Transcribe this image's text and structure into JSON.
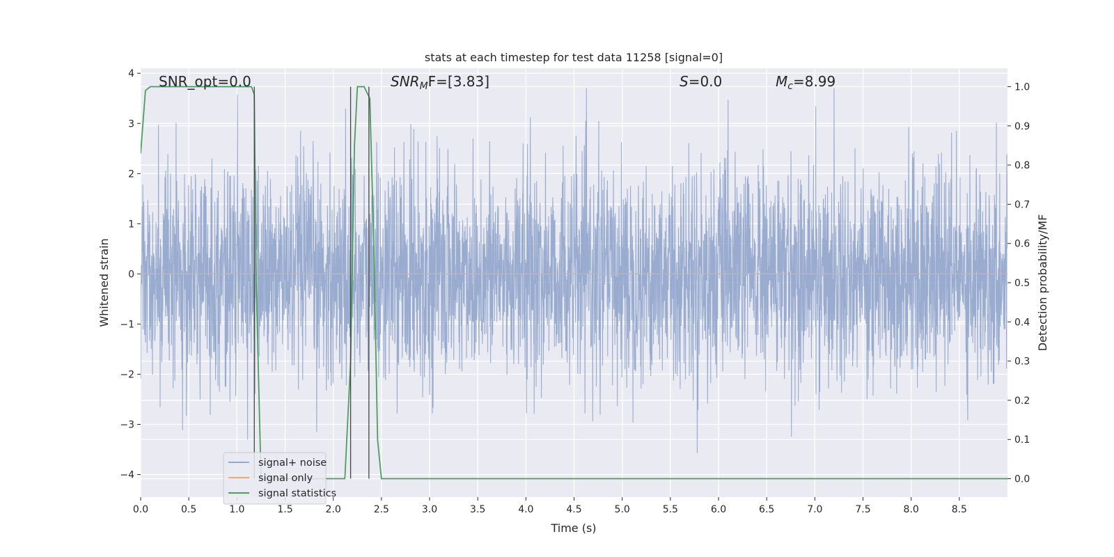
{
  "chart_data": {
    "type": "line",
    "title": "stats at each timestep for test data 11258 [signal=0]",
    "xlabel": "Time (s)",
    "ylabel_left": "Whitened strain",
    "ylabel_right": "Detection probability/MF",
    "xlim": [
      0.0,
      9.0
    ],
    "ylim_left": [
      -4.45,
      4.1
    ],
    "ylim_right": [
      -0.047,
      1.047
    ],
    "xticks": [
      0.0,
      0.5,
      1.0,
      1.5,
      2.0,
      2.5,
      3.0,
      3.5,
      4.0,
      4.5,
      5.0,
      5.5,
      6.0,
      6.5,
      7.0,
      7.5,
      8.0,
      8.5
    ],
    "xtick_labels": [
      "0.0",
      "0.5",
      "1.0",
      "1.5",
      "2.0",
      "2.5",
      "3.0",
      "3.5",
      "4.0",
      "4.5",
      "5.0",
      "5.5",
      "6.0",
      "6.5",
      "7.0",
      "7.5",
      "8.0",
      "8.5"
    ],
    "yticks_left": [
      4,
      3,
      2,
      1,
      0,
      -1,
      -2,
      -3,
      -4
    ],
    "ytick_labels_left": [
      "4",
      "3",
      "2",
      "1",
      "0",
      "−1",
      "−2",
      "−3",
      "−4"
    ],
    "yticks_right": [
      1.0,
      0.9,
      0.8,
      0.7,
      0.6,
      0.5,
      0.4,
      0.3,
      0.2,
      0.1,
      0.0
    ],
    "ytick_labels_right": [
      "1.0",
      "0.9",
      "0.8",
      "0.7",
      "0.6",
      "0.5",
      "0.4",
      "0.3",
      "0.2",
      "0.1",
      "0.0"
    ],
    "grid": true,
    "legend_position": "lower-left",
    "annotations": {
      "snr_opt": "SNR_opt=0.0",
      "snr_mf_prefix": "SNR",
      "snr_mf_sub": "M",
      "snr_mf_suffix": "F=[3.83]",
      "s_symbol": "S",
      "s_value": "=0.0",
      "mc_symbol": "M",
      "mc_sub": "c",
      "mc_value": "=8.99"
    },
    "series": [
      {
        "name": "signal+ noise",
        "color": "#95a9ce",
        "axis": "left",
        "description_values": "whitened noise, approx. gaussian, spikes to about +3.7 / -4.0",
        "amplitude_range": [
          -4.0,
          3.7
        ]
      },
      {
        "name": "signal only",
        "color": "#e8a987",
        "axis": "left",
        "x": [
          0.0,
          9.0
        ],
        "y": [
          0.0,
          0.0
        ]
      },
      {
        "name": "signal statistics",
        "color": "#4c9e5c",
        "axis": "right",
        "x": [
          0.0,
          0.05,
          0.1,
          0.15,
          1.15,
          1.18,
          1.2,
          1.25,
          2.12,
          2.18,
          2.22,
          2.25,
          2.32,
          2.38,
          2.42,
          2.46,
          2.5,
          9.0
        ],
        "y": [
          0.83,
          0.99,
          1.0,
          1.0,
          1.0,
          0.98,
          0.5,
          0.0,
          0.0,
          0.3,
          0.85,
          1.0,
          1.0,
          0.97,
          0.6,
          0.1,
          0.0,
          0.0
        ]
      }
    ],
    "vertical_markers": {
      "color": "#444444",
      "x": [
        1.18,
        2.18,
        2.37
      ],
      "y_top": 1.0,
      "y_bottom": 0.0
    }
  }
}
